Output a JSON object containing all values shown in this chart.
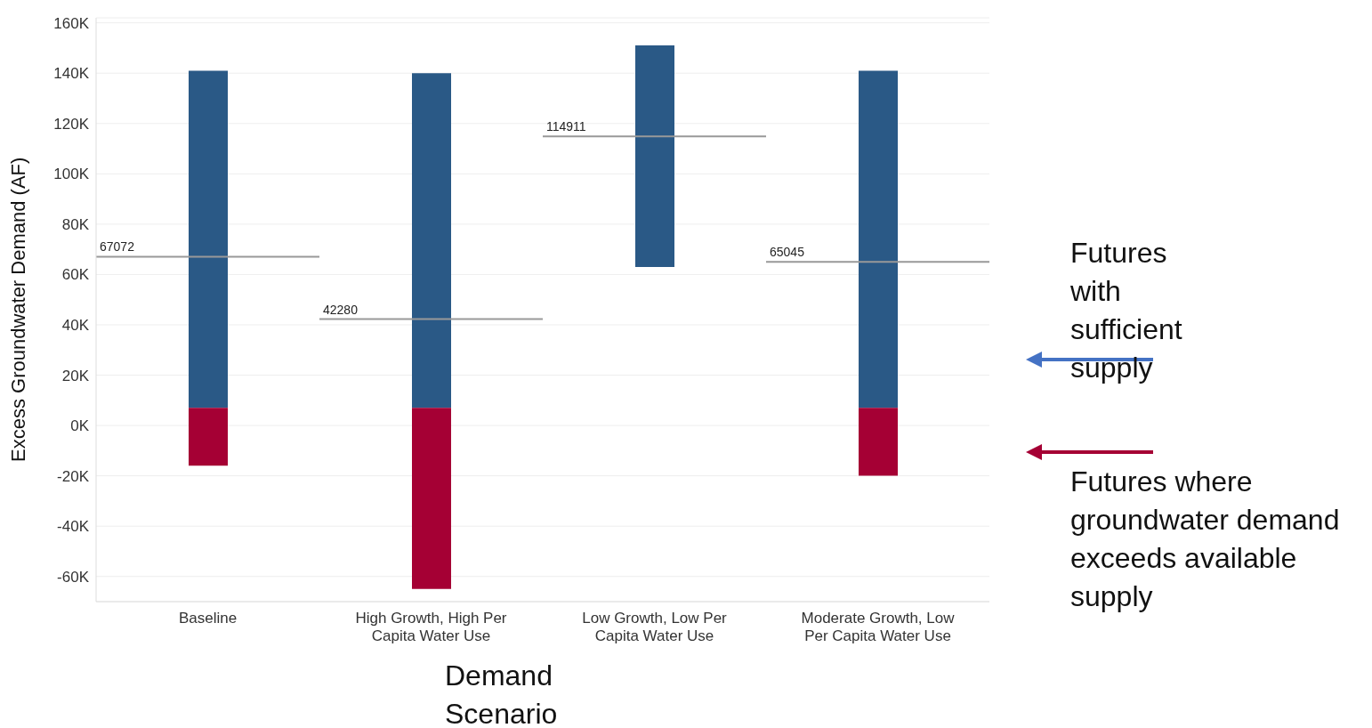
{
  "chart_data": {
    "type": "bar",
    "ylabel": "Excess Groundwater Demand (AF)",
    "xlabel": "Demand Scenario",
    "categories": [
      "Baseline",
      "High Growth, High Per Capita Water Use",
      "Low Growth, Low Per Capita Water Use",
      "Moderate Growth, Low Per Capita Water Use"
    ],
    "series": [
      {
        "color": "#2a5986",
        "base": [
          7000,
          7000,
          63000,
          7000
        ],
        "values": [
          134000,
          133000,
          88000,
          134000
        ]
      },
      {
        "color": "#a50034",
        "base": [
          7000,
          7000,
          null,
          7000
        ],
        "values": [
          -23000,
          -72000,
          null,
          -27000
        ]
      }
    ],
    "ylim": [
      -70000,
      162000
    ],
    "yticks": [
      {
        "value": -60000,
        "label": "-60K"
      },
      {
        "value": -40000,
        "label": "-40K"
      },
      {
        "value": -20000,
        "label": "-20K"
      },
      {
        "value": 0,
        "label": "0K"
      },
      {
        "value": 20000,
        "label": "20K"
      },
      {
        "value": 40000,
        "label": "40K"
      },
      {
        "value": 60000,
        "label": "60K"
      },
      {
        "value": 80000,
        "label": "80K"
      },
      {
        "value": 100000,
        "label": "100K"
      },
      {
        "value": 120000,
        "label": "120K"
      },
      {
        "value": 140000,
        "label": "140K"
      },
      {
        "value": 160000,
        "label": "160K"
      }
    ],
    "grid": "y",
    "legend": false,
    "ref_lines": [
      {
        "axis": "y",
        "value": 67072,
        "label": "67072",
        "color": "#999999"
      },
      {
        "axis": "y",
        "value": 42280,
        "label": "42280",
        "color": "#999999"
      },
      {
        "axis": "y",
        "value": 114911,
        "label": "114911",
        "color": "#999999"
      },
      {
        "axis": "y",
        "value": 65045,
        "label": "65045",
        "color": "#999999"
      }
    ],
    "annotations": [
      "Futures with sufficient supply",
      "Futures where groundwater demand exceeds available supply"
    ]
  }
}
